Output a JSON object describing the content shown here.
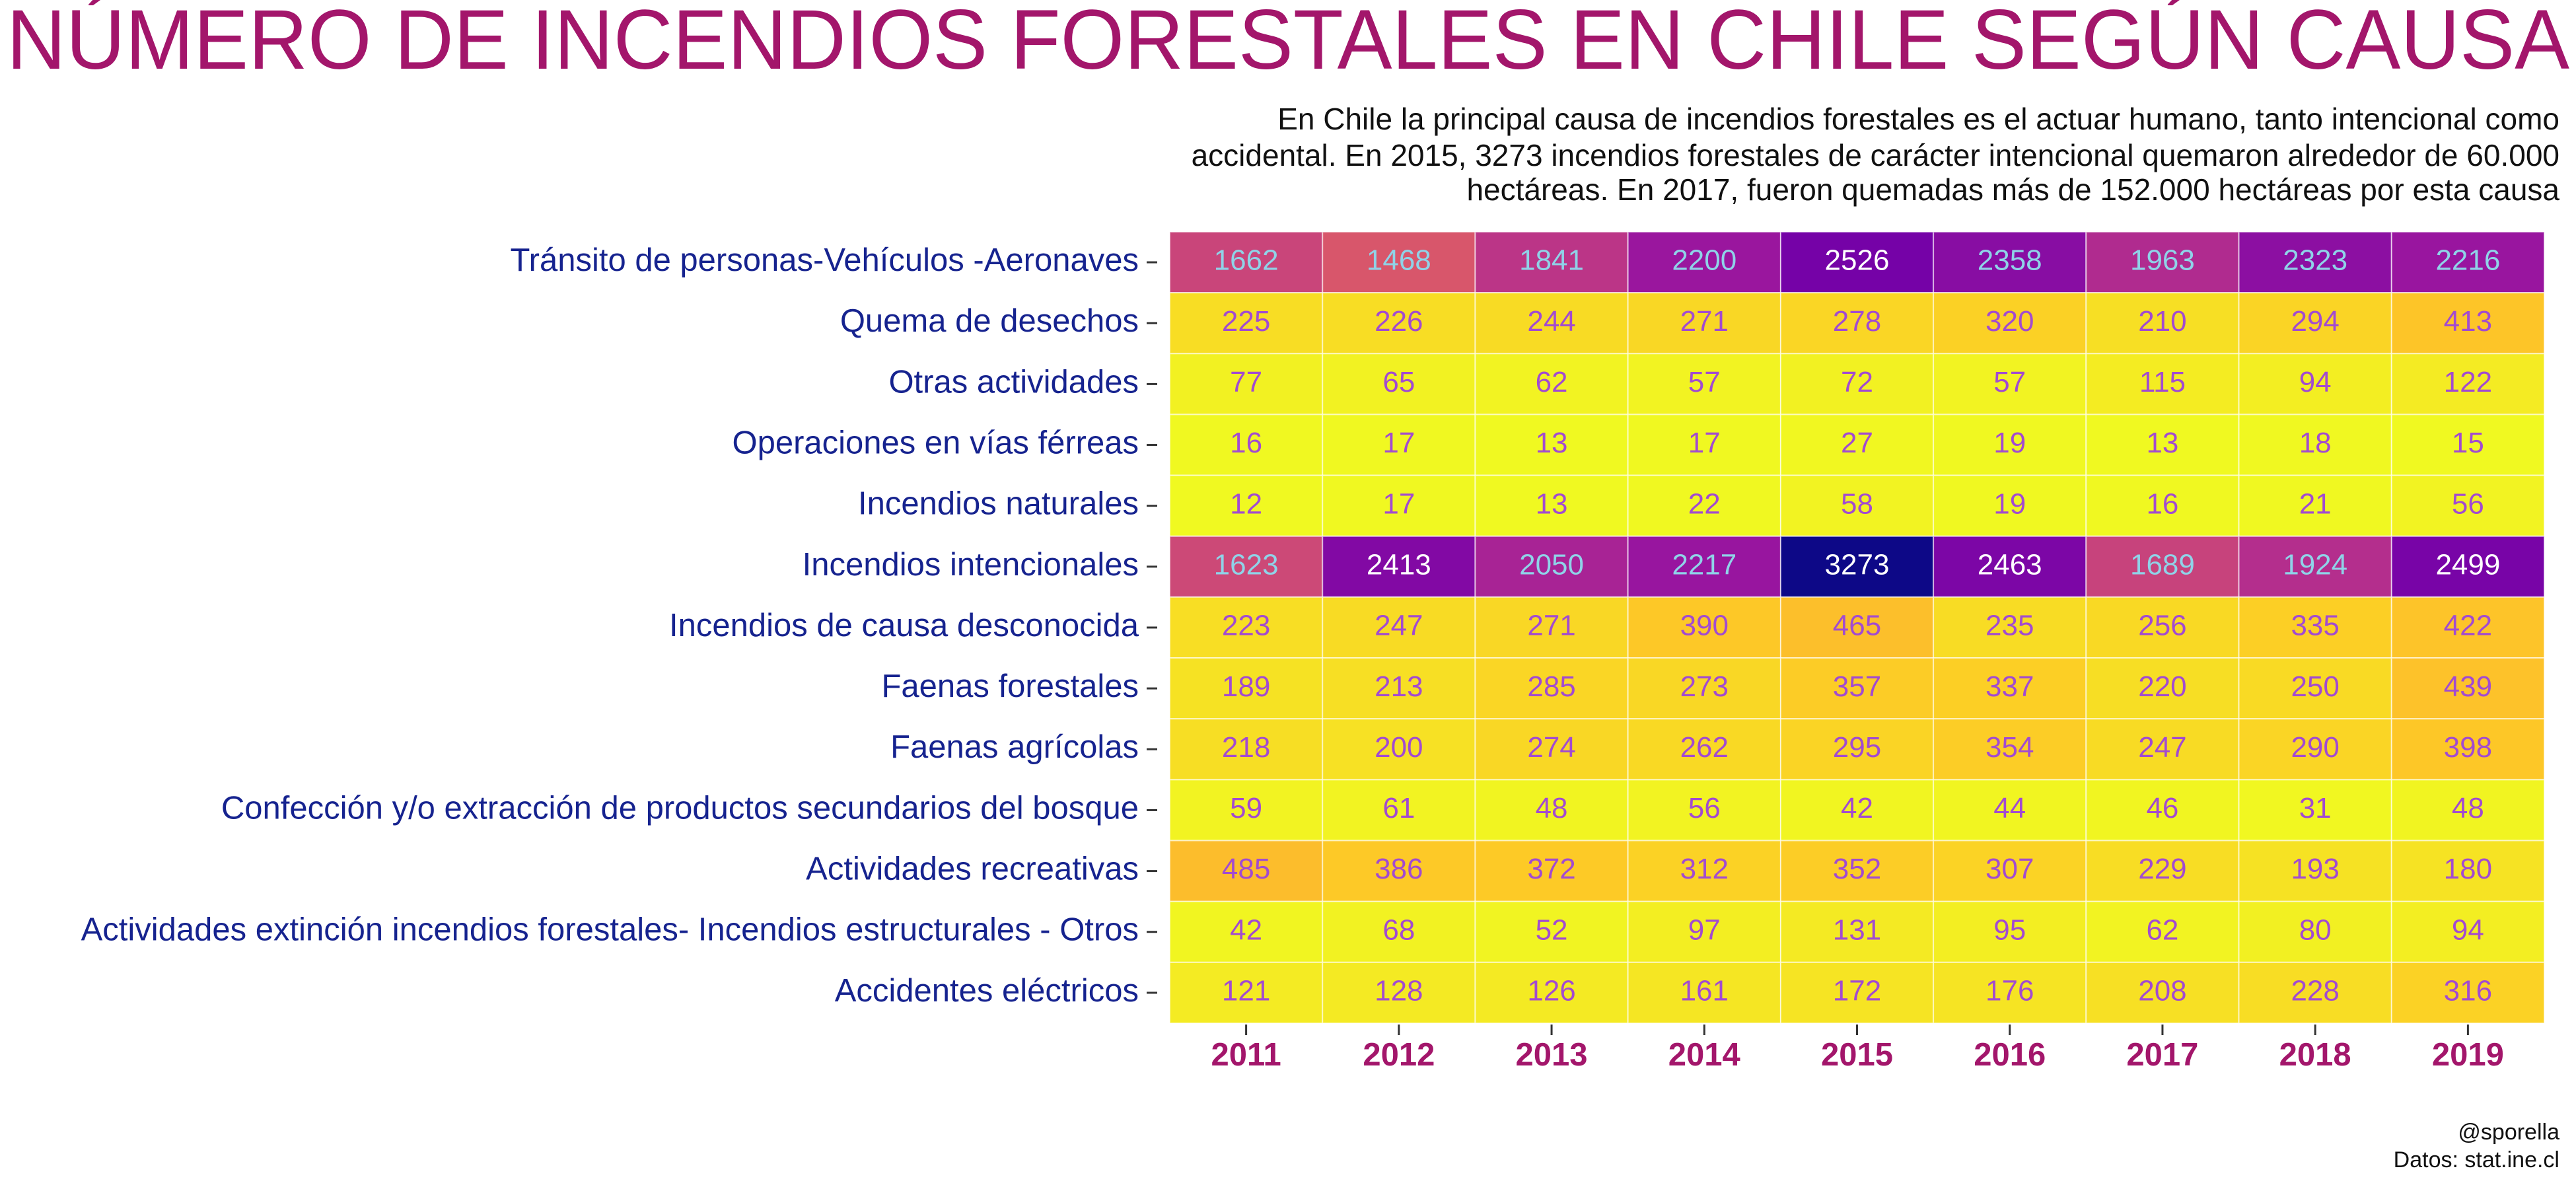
{
  "chart_data": {
    "type": "heatmap",
    "title": "NÚMERO DE INCENDIOS FORESTALES EN CHILE SEGÚN CAUSA",
    "subtitle": [
      "En Chile la principal causa de incendios forestales es el actuar humano, tanto intencional como",
      "accidental. En 2015, 3273 incendios forestales de carácter intencional quemaron alrededor de 60.000",
      "hectáreas. En 2017, fueron quemadas más de 152.000 hectáreas por esta causa"
    ],
    "caption": [
      "@sporella",
      "Datos: stat.ine.cl"
    ],
    "x": [
      2011,
      2012,
      2013,
      2014,
      2015,
      2016,
      2017,
      2018,
      2019
    ],
    "y": [
      "Tránsito de personas-Vehículos -Aeronaves",
      "Quema de desechos",
      "Otras actividades",
      "Operaciones en vías férreas",
      "Incendios naturales",
      "Incendios intencionales",
      "Incendios de causa desconocida",
      "Faenas forestales",
      "Faenas agrícolas",
      "Confección y/o extracción de productos secundarios del bosque",
      "Actividades recreativas",
      "Actividades extinción incendios forestales- Incendios estructurales - Otros",
      "Accidentes eléctricos"
    ],
    "values": [
      [
        1662,
        1468,
        1841,
        2200,
        2526,
        2358,
        1963,
        2323,
        2216
      ],
      [
        225,
        226,
        244,
        271,
        278,
        320,
        210,
        294,
        413
      ],
      [
        77,
        65,
        62,
        57,
        72,
        57,
        115,
        94,
        122
      ],
      [
        16,
        17,
        13,
        17,
        27,
        19,
        13,
        18,
        15
      ],
      [
        12,
        17,
        13,
        22,
        58,
        19,
        16,
        21,
        56
      ],
      [
        1623,
        2413,
        2050,
        2217,
        3273,
        2463,
        1689,
        1924,
        2499
      ],
      [
        223,
        247,
        271,
        390,
        465,
        235,
        256,
        335,
        422
      ],
      [
        189,
        213,
        285,
        273,
        357,
        337,
        220,
        250,
        439
      ],
      [
        218,
        200,
        274,
        262,
        295,
        354,
        247,
        290,
        398
      ],
      [
        59,
        61,
        48,
        56,
        42,
        44,
        46,
        31,
        48
      ],
      [
        485,
        386,
        372,
        312,
        352,
        307,
        229,
        193,
        180
      ],
      [
        42,
        68,
        52,
        97,
        131,
        95,
        62,
        80,
        94
      ],
      [
        121,
        128,
        126,
        161,
        172,
        176,
        208,
        228,
        316
      ]
    ],
    "colormap": "plasma",
    "reverse_colormap": true
  }
}
